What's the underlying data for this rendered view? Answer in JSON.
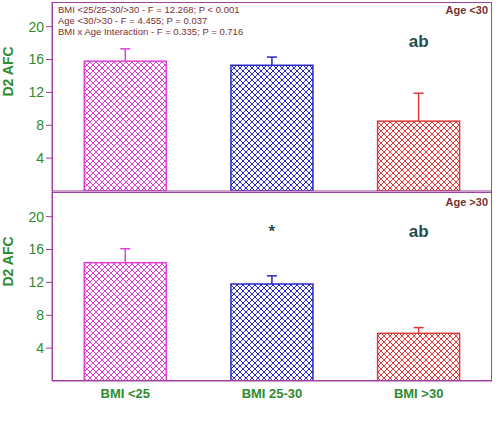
{
  "chart_data": [
    {
      "type": "bar",
      "title": "Age <30",
      "subtitle": [
        "BMI <25/25-30/>30 - F = 12.268; P < 0.001",
        "Age <30/>30 - F = 4.455; P = 0.037",
        "BMI x Age Interaction - F = 0.335; P = 0.716"
      ],
      "ylabel": "D2 AFC",
      "categories": [
        "BMI <25",
        "BMI 25-30",
        "BMI >30"
      ],
      "values": [
        15.8,
        15.3,
        8.5
      ],
      "errors": [
        1.5,
        1.0,
        3.4
      ],
      "colors": [
        "#e040d8",
        "#2828c8",
        "#e03838"
      ],
      "ylim": [
        0,
        23
      ],
      "yticks": [
        4,
        8,
        12,
        16,
        20
      ],
      "tick_labels": "y",
      "annotations": [
        {
          "text": "ab",
          "category": "BMI >30"
        }
      ]
    },
    {
      "type": "bar",
      "title": "Age >30",
      "ylabel": "D2 AFC",
      "categories": [
        "BMI <25",
        "BMI 25-30",
        "BMI >30"
      ],
      "values": [
        14.4,
        11.8,
        5.8
      ],
      "errors": [
        1.7,
        1.0,
        0.7
      ],
      "colors": [
        "#e040d8",
        "#2828c8",
        "#e03838"
      ],
      "ylim": [
        0,
        23
      ],
      "yticks": [
        4,
        8,
        12,
        16,
        20
      ],
      "annotations": [
        {
          "text": "*",
          "category": "BMI 25-30"
        },
        {
          "text": "ab",
          "category": "BMI >30"
        }
      ]
    }
  ]
}
